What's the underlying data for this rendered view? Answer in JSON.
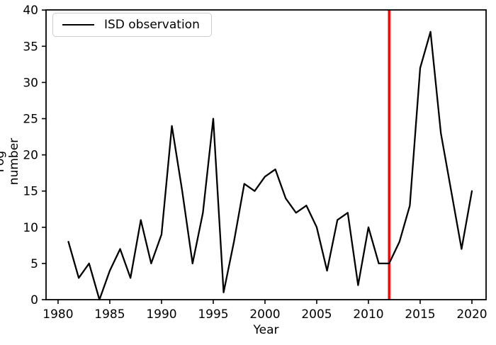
{
  "figure": {
    "xlabel": "Year",
    "ylabel": "Fog number",
    "legend": {
      "label": "ISD observation",
      "line_color": "#000000"
    }
  },
  "chart_data": {
    "type": "line",
    "title": "",
    "xlabel": "Year",
    "ylabel": "Fog number",
    "grid": false,
    "legend_position": "upper left",
    "legend_entries": [
      "ISD observation"
    ],
    "x": [
      1981,
      1982,
      1983,
      1984,
      1985,
      1986,
      1987,
      1988,
      1989,
      1990,
      1991,
      1992,
      1993,
      1994,
      1995,
      1996,
      1997,
      1998,
      1999,
      2000,
      2001,
      2002,
      2003,
      2004,
      2005,
      2006,
      2007,
      2008,
      2009,
      2010,
      2011,
      2012,
      2013,
      2014,
      2015,
      2016,
      2017,
      2018,
      2019,
      2020
    ],
    "series": [
      {
        "name": "ISD observation",
        "color": "#000000",
        "values": [
          8,
          3,
          5,
          0,
          4,
          7,
          3,
          11,
          5,
          9,
          24,
          15,
          5,
          12,
          25,
          1,
          8,
          16,
          15,
          17,
          18,
          14,
          12,
          13,
          10,
          4,
          11,
          12,
          2,
          10,
          5,
          5,
          8,
          13,
          32,
          37,
          23,
          15,
          7,
          15
        ]
      }
    ],
    "vline": {
      "x": 2012,
      "color": "#ff0000"
    },
    "xticks": [
      1980,
      1985,
      1990,
      1995,
      2000,
      2005,
      2010,
      2015,
      2020
    ],
    "yticks": [
      0,
      5,
      10,
      15,
      20,
      25,
      30,
      35,
      40
    ],
    "xlim": [
      1978.84,
      2021.37
    ],
    "ylim": [
      0,
      40.02
    ],
    "line_width": 2.3,
    "vline_width": 3.4,
    "spine_color": "#000000",
    "background_color": "#ffffff"
  }
}
